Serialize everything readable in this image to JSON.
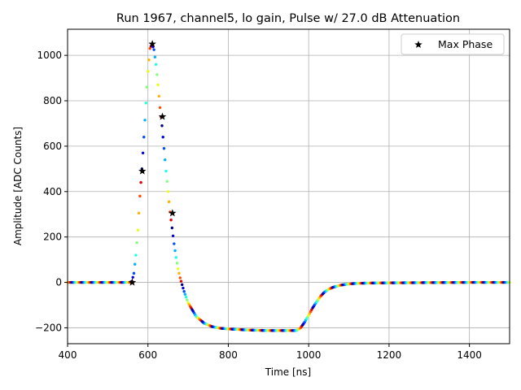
{
  "chart_data": {
    "type": "scatter",
    "title": "Run 1967, channel5, lo gain, Pulse w/ 27.0 dB Attenuation",
    "xlabel": "Time [ns]",
    "ylabel": "Amplitude [ADC Counts]",
    "xlim": [
      400,
      1500
    ],
    "ylim": [
      -270,
      1115
    ],
    "xticks": [
      400,
      600,
      800,
      1000,
      1200,
      1400
    ],
    "yticks": [
      -200,
      0,
      200,
      400,
      600,
      800,
      1000
    ],
    "xtick_labels": [
      "400",
      "600",
      "800",
      "1000",
      "1200",
      "1400"
    ],
    "ytick_labels": [
      "−200",
      "0",
      "200",
      "400",
      "600",
      "800",
      "1000"
    ],
    "grid": true,
    "legend_position": "top-right",
    "colormap": "jet",
    "series": [
      {
        "name": "",
        "kind": "waveform-dots",
        "color_by": "phase",
        "x": [
          400,
          500,
          555,
          560,
          565,
          570,
          575,
          580,
          585,
          590,
          595,
          600,
          605,
          610,
          615,
          620,
          625,
          630,
          635,
          640,
          645,
          650,
          655,
          660,
          665,
          670,
          675,
          680,
          690,
          700,
          720,
          740,
          760,
          780,
          800,
          850,
          900,
          950,
          970,
          980,
          990,
          1000,
          1010,
          1020,
          1030,
          1040,
          1050,
          1060,
          1080,
          1100,
          1120,
          1150,
          1200,
          1300,
          1400,
          1500
        ],
        "y": [
          0,
          0,
          0,
          5,
          40,
          120,
          230,
          380,
          500,
          640,
          790,
          930,
          1030,
          1050,
          1025,
          960,
          870,
          770,
          690,
          590,
          490,
          400,
          310,
          240,
          170,
          110,
          60,
          20,
          -40,
          -90,
          -150,
          -180,
          -195,
          -202,
          -205,
          -210,
          -212,
          -212,
          -212,
          -200,
          -175,
          -145,
          -112,
          -85,
          -60,
          -42,
          -30,
          -22,
          -12,
          -7,
          -4,
          -3,
          -2,
          -1,
          0,
          0
        ]
      },
      {
        "name": "Max Phase",
        "kind": "markers",
        "marker": "star",
        "color": "#000000",
        "x": [
          561,
          586,
          611,
          636,
          661
        ],
        "y": [
          0,
          490,
          1050,
          730,
          305
        ]
      }
    ]
  }
}
